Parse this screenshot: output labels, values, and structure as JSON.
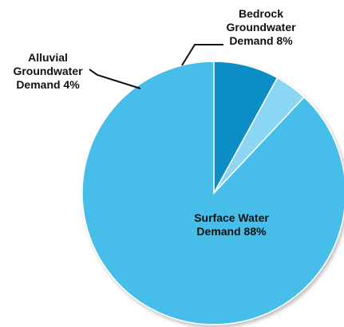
{
  "chart_data": {
    "type": "pie",
    "slices": [
      {
        "label_lines": [
          "Surface Water",
          "Demand 88%"
        ],
        "value": 88,
        "color": "#46bee9"
      },
      {
        "label_lines": [
          "Alluvial",
          "Groundwater",
          "Demand 4%"
        ],
        "value": 4,
        "color": "#8bd6f3"
      },
      {
        "label_lines": [
          "Bedrock",
          "Groundwater",
          "Demand 8%"
        ],
        "value": 8,
        "color": "#0a8dc6"
      }
    ],
    "slice_order": "counter-clockwise from top"
  }
}
